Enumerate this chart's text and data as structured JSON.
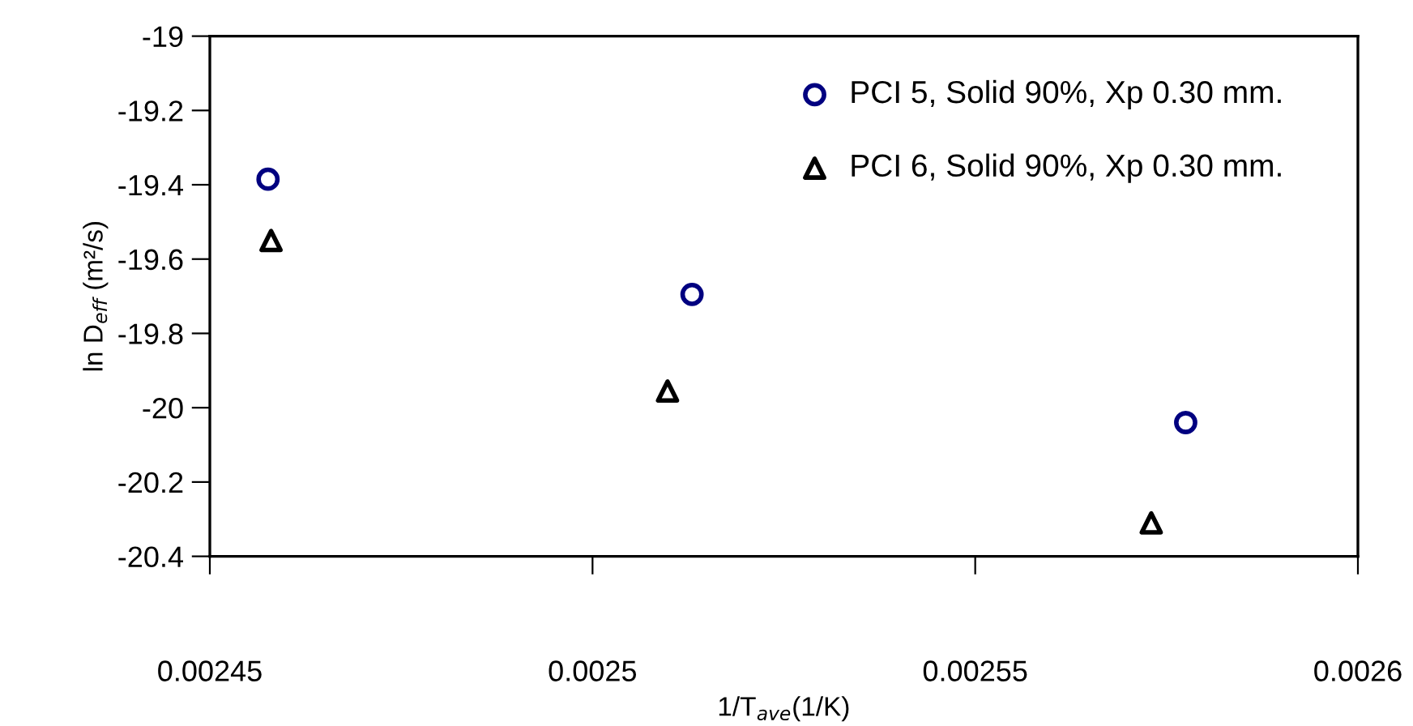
{
  "chart_data": {
    "type": "scatter",
    "xlabel": "1/T$_{ave}$(1/K)",
    "ylabel": "ln D$_{eff}$ (m²/s)",
    "xlim": [
      0.00245,
      0.0026
    ],
    "xticks": [
      0.00245,
      0.0025,
      0.00255,
      0.0026
    ],
    "ylim": [
      -20.4,
      -19
    ],
    "yticks": [
      -20.4,
      -20.2,
      -20,
      -19.8,
      -19.6,
      -19.4,
      -19.2,
      -19
    ],
    "grid": false,
    "legend": "top right",
    "series": [
      {
        "name": "PCI 5, Solid 90%, Xp 0.30 mm.",
        "color": "#000080",
        "marker": "circle",
        "x": [
          0.0024576,
          0.002513,
          0.0025775
        ],
        "values": [
          -19.385,
          -19.695,
          -20.04
        ]
      },
      {
        "name": "PCI 6, Solid 90%, Xp 0.30 mm.",
        "color": "#000000",
        "marker": "triangle",
        "x": [
          0.002458,
          0.0025098,
          0.002573
        ],
        "values": [
          -19.55,
          -19.955,
          -20.31
        ]
      }
    ]
  }
}
